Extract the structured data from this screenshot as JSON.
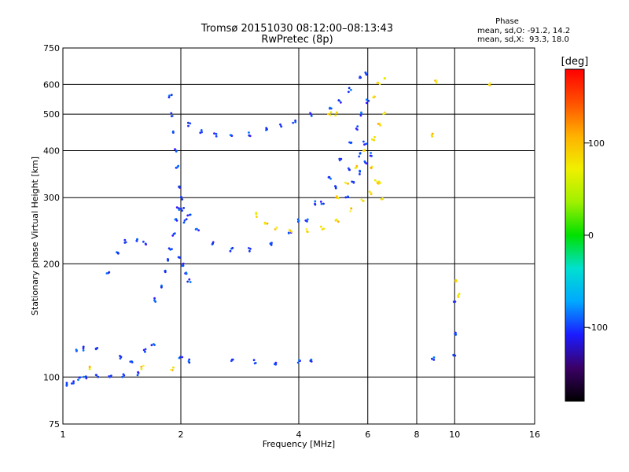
{
  "chart_data": {
    "type": "scatter",
    "title": "Tromsø 20151030 08:12:00–08:13:43",
    "subtitle": "RwPretec (8p)",
    "xlabel": "Frequency [MHz]",
    "ylabel": "Stationary phase Virtual Height [km]",
    "x_scale": "log",
    "y_scale": "log",
    "xlim": [
      1,
      16
    ],
    "ylim": [
      75,
      750
    ],
    "x_ticks": [
      "1",
      "2",
      "4",
      "6",
      "8",
      "10",
      "16"
    ],
    "y_ticks": [
      "75",
      "100",
      "200",
      "300",
      "400",
      "500",
      "600",
      "750"
    ],
    "grid": true,
    "phase_info": {
      "heading": "Phase",
      "o_line": "mean, sd,O: -91.2, 14.2",
      "x_line": "mean, sd,X:  93.3, 18.0"
    },
    "colorbar": {
      "label": "[deg]",
      "range": [
        -180,
        180
      ],
      "ticks": [
        "100",
        "0",
        "-100"
      ],
      "colors": [
        "#000000",
        "#3b0066",
        "#1b1bff",
        "#00a8ff",
        "#00e0d0",
        "#00e000",
        "#a0f000",
        "#f0f000",
        "#ffb000",
        "#ff5000",
        "#ff0000"
      ]
    },
    "series": [
      {
        "points": [
          [
            1.02,
            96
          ],
          [
            1.06,
            97
          ],
          [
            1.1,
            99
          ],
          [
            1.14,
            100
          ],
          [
            1.22,
            101
          ],
          [
            1.32,
            100
          ],
          [
            1.42,
            101
          ],
          [
            1.55,
            102
          ],
          [
            1.08,
            117
          ],
          [
            1.13,
            119
          ],
          [
            1.22,
            118
          ],
          [
            1.4,
            113
          ],
          [
            1.5,
            110
          ],
          [
            1.62,
            118
          ],
          [
            1.7,
            122
          ],
          [
            1.3,
            190
          ],
          [
            1.38,
            215
          ],
          [
            1.45,
            230
          ],
          [
            1.55,
            232
          ],
          [
            1.62,
            228
          ],
          [
            1.72,
            160
          ],
          [
            1.78,
            175
          ],
          [
            1.82,
            190
          ],
          [
            1.86,
            205
          ],
          [
            1.88,
            220
          ],
          [
            1.92,
            240
          ],
          [
            1.95,
            260
          ],
          [
            1.97,
            280
          ],
          [
            1.88,
            560
          ],
          [
            1.9,
            500
          ],
          [
            1.92,
            450
          ],
          [
            1.94,
            400
          ],
          [
            1.96,
            360
          ],
          [
            1.98,
            320
          ],
          [
            2.0,
            300
          ],
          [
            2.02,
            280
          ],
          [
            2.05,
            260
          ],
          [
            2.02,
            200
          ],
          [
            2.06,
            190
          ],
          [
            2.1,
            180
          ],
          [
            1.98,
            210
          ],
          [
            2.1,
            470
          ],
          [
            2.25,
            450
          ],
          [
            2.45,
            440
          ],
          [
            2.7,
            438
          ],
          [
            3.0,
            442
          ],
          [
            3.3,
            455
          ],
          [
            3.6,
            465
          ],
          [
            3.9,
            480
          ],
          [
            4.3,
            500
          ],
          [
            4.8,
            520
          ],
          [
            5.1,
            540
          ],
          [
            5.4,
            580
          ],
          [
            5.7,
            630
          ],
          [
            5.9,
            640
          ],
          [
            2.1,
            270
          ],
          [
            2.2,
            245
          ],
          [
            2.4,
            228
          ],
          [
            2.7,
            218
          ],
          [
            3.0,
            218
          ],
          [
            3.4,
            225
          ],
          [
            3.8,
            240
          ],
          [
            4.2,
            262
          ],
          [
            4.6,
            290
          ],
          [
            5.0,
            320
          ],
          [
            5.4,
            355
          ],
          [
            5.7,
            390
          ],
          [
            5.9,
            420
          ],
          [
            4.0,
            260
          ],
          [
            4.4,
            290
          ],
          [
            4.8,
            340
          ],
          [
            5.1,
            380
          ],
          [
            5.4,
            420
          ],
          [
            5.6,
            460
          ],
          [
            5.8,
            500
          ],
          [
            6.0,
            540
          ],
          [
            5.3,
            300
          ],
          [
            5.5,
            330
          ],
          [
            5.7,
            350
          ],
          [
            5.9,
            370
          ],
          [
            6.1,
            390
          ],
          [
            2.0,
            112
          ],
          [
            2.1,
            110
          ],
          [
            2.7,
            110
          ],
          [
            3.1,
            110
          ],
          [
            3.5,
            109
          ],
          [
            4.0,
            110
          ],
          [
            4.3,
            110
          ],
          [
            8.8,
            112
          ],
          [
            10.0,
            115
          ],
          [
            10.0,
            130
          ],
          [
            10.0,
            160
          ]
        ]
      },
      {
        "points": [
          [
            3.1,
            270
          ],
          [
            3.3,
            255
          ],
          [
            3.5,
            248
          ],
          [
            3.8,
            245
          ],
          [
            4.2,
            245
          ],
          [
            4.6,
            250
          ],
          [
            5.0,
            262
          ],
          [
            5.4,
            278
          ],
          [
            5.8,
            295
          ],
          [
            6.1,
            310
          ],
          [
            6.4,
            330
          ],
          [
            5.0,
            300
          ],
          [
            5.3,
            330
          ],
          [
            5.6,
            360
          ],
          [
            5.9,
            400
          ],
          [
            6.2,
            430
          ],
          [
            6.4,
            470
          ],
          [
            6.6,
            500
          ],
          [
            6.2,
            560
          ],
          [
            6.4,
            600
          ],
          [
            6.6,
            620
          ],
          [
            6.1,
            360
          ],
          [
            6.3,
            330
          ],
          [
            6.5,
            300
          ],
          [
            4.8,
            500
          ],
          [
            5.0,
            500
          ],
          [
            8.8,
            440
          ],
          [
            9.0,
            610
          ],
          [
            12.3,
            600
          ],
          [
            10.1,
            180
          ],
          [
            10.2,
            165
          ],
          [
            1.18,
            106
          ],
          [
            1.6,
            106
          ],
          [
            1.9,
            105
          ]
        ]
      }
    ]
  }
}
